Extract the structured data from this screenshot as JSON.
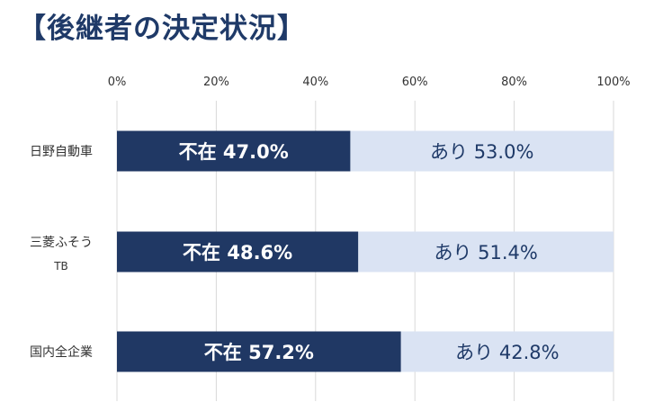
{
  "title": "【後継者の決定状況】",
  "chart_data": {
    "type": "bar",
    "orientation": "horizontal",
    "stacked": true,
    "percent": true,
    "title": "【後継者の決定状況】",
    "categories": [
      {
        "lines": [
          "日野自動車"
        ]
      },
      {
        "lines": [
          "三菱ふそう",
          "TB"
        ]
      },
      {
        "lines": [
          "国内全企業"
        ]
      }
    ],
    "series": [
      {
        "name": "不在",
        "values": [
          47.0,
          48.6,
          57.2
        ],
        "labels": [
          "不在 47.0%",
          "不在 48.6%",
          "不在 57.2%"
        ],
        "color": "#203864"
      },
      {
        "name": "あり",
        "values": [
          53.0,
          51.4,
          42.8
        ],
        "labels": [
          "あり 53.0%",
          "あり 51.4%",
          "あり 42.8%"
        ],
        "color": "#dae3f3"
      }
    ],
    "xlim": [
      0,
      100
    ],
    "xticks": [
      "0%",
      "20%",
      "40%",
      "60%",
      "80%",
      "100%"
    ],
    "grid": true,
    "legend": "none"
  }
}
